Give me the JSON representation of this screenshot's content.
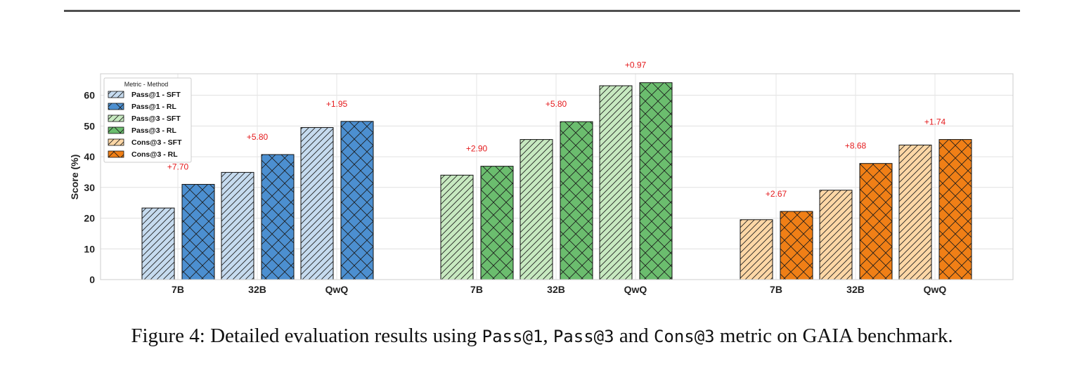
{
  "caption": {
    "prefix": "Figure 4: Detailed evaluation results using ",
    "m1": "Pass@1",
    "sep1": ", ",
    "m2": "Pass@3",
    "sep2": " and ",
    "m3": "Cons@3",
    "suffix": " metric on GAIA benchmark."
  },
  "chart_data": {
    "type": "bar",
    "ylabel": "Score (%)",
    "ylim": [
      0,
      67
    ],
    "yticks": [
      0,
      10,
      20,
      30,
      40,
      50,
      60
    ],
    "grid": true,
    "legend": {
      "title": "Metric - Method",
      "placement": "top-left",
      "entries": [
        "Pass@1 - SFT",
        "Pass@1 - RL",
        "Pass@3 - SFT",
        "Pass@3 - RL",
        "Cons@3 - SFT",
        "Cons@3 - RL"
      ]
    },
    "groups": [
      {
        "metric": "Pass@1",
        "colors": {
          "SFT": "#c6dbef",
          "RL": "#4c8fd0"
        },
        "categories": [
          "7B",
          "32B",
          "QwQ"
        ],
        "series": [
          {
            "name": "Pass@1 - SFT",
            "values": [
              23.3,
              34.9,
              49.5
            ]
          },
          {
            "name": "Pass@1 - RL",
            "values": [
              31.0,
              40.7,
              51.5
            ]
          }
        ],
        "gains": [
          "+7.70",
          "+5.80",
          "+1.95"
        ]
      },
      {
        "metric": "Pass@3",
        "colors": {
          "SFT": "#c7e9c0",
          "RL": "#6bbd6e"
        },
        "categories": [
          "7B",
          "32B",
          "QwQ"
        ],
        "series": [
          {
            "name": "Pass@3 - SFT",
            "values": [
              34.0,
              45.6,
              63.1
            ]
          },
          {
            "name": "Pass@3 - RL",
            "values": [
              36.9,
              51.4,
              64.1
            ]
          }
        ],
        "gains": [
          "+2.90",
          "+5.80",
          "+0.97"
        ]
      },
      {
        "metric": "Cons@3",
        "colors": {
          "SFT": "#fdd7a6",
          "RL": "#f07f16"
        },
        "categories": [
          "7B",
          "32B",
          "QwQ"
        ],
        "series": [
          {
            "name": "Cons@3 - SFT",
            "values": [
              19.5,
              29.1,
              43.8
            ]
          },
          {
            "name": "Cons@3 - RL",
            "values": [
              22.2,
              37.8,
              45.6
            ]
          }
        ],
        "gains": [
          "+2.67",
          "+8.68",
          "+1.74"
        ]
      }
    ],
    "annotation_color": "#e41a1c"
  }
}
